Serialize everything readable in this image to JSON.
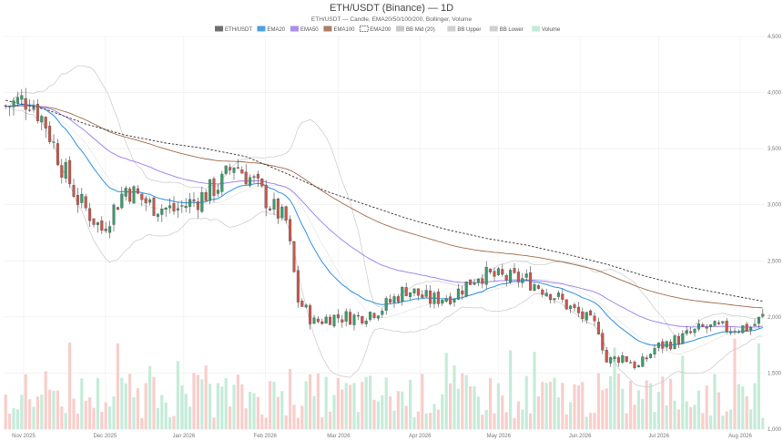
{
  "chart_data": {
    "type": "candlestick",
    "title": "ETH/USDT (Binance) — 1D",
    "subtitle": "ETH/USDT — Candle, EMA20/50/100/200, Bollinger, Volume",
    "legend": [
      {
        "label": "ETH/USDT",
        "color": "#555555",
        "kind": "box"
      },
      {
        "label": "EMA20",
        "color": "#2f8fe0",
        "kind": "box"
      },
      {
        "label": "EMA50",
        "color": "#9b7bea",
        "kind": "box"
      },
      {
        "label": "EMA100",
        "color": "#a0674a",
        "kind": "box"
      },
      {
        "label": "EMA200",
        "color": "#333333",
        "kind": "dashed"
      },
      {
        "label": "BB Mid (20)",
        "color": "#bdbdbd",
        "kind": "box"
      },
      {
        "label": "BB Upper",
        "color": "#c8c8c8",
        "kind": "box"
      },
      {
        "label": "BB Lower",
        "color": "#c8c8c8",
        "kind": "box"
      },
      {
        "label": "Volume",
        "color": "#b9e8d2",
        "kind": "box"
      }
    ],
    "x_ticks": [
      "Nov 2025",
      "Dec 2025",
      "Jan 2026",
      "Feb 2026",
      "Mar 2026",
      "Apr 2026",
      "May 2026",
      "Jun 2026",
      "Jul 2026",
      "Aug 2026"
    ],
    "y_ticks": [
      "1,000",
      "1,500",
      "2,000",
      "2,500",
      "3,000",
      "3,500",
      "4,000",
      "4,500"
    ],
    "ylim": [
      1000,
      4500
    ],
    "price_keyframes": [
      [
        0,
        3880
      ],
      [
        6,
        3950
      ],
      [
        10,
        3720
      ],
      [
        14,
        3350
      ],
      [
        18,
        3050
      ],
      [
        24,
        2780
      ],
      [
        30,
        3150
      ],
      [
        36,
        3000
      ],
      [
        42,
        2950
      ],
      [
        48,
        3050
      ],
      [
        54,
        3200
      ],
      [
        57,
        3370
      ],
      [
        62,
        3200
      ],
      [
        66,
        3000
      ],
      [
        70,
        2850
      ],
      [
        73,
        2150
      ],
      [
        77,
        1950
      ],
      [
        81,
        2000
      ],
      [
        88,
        2000
      ],
      [
        94,
        2080
      ],
      [
        100,
        2250
      ],
      [
        106,
        2150
      ],
      [
        112,
        2200
      ],
      [
        118,
        2380
      ],
      [
        124,
        2350
      ],
      [
        130,
        2330
      ],
      [
        136,
        2220
      ],
      [
        142,
        2050
      ],
      [
        148,
        1900
      ],
      [
        150,
        1600
      ],
      [
        154,
        1650
      ],
      [
        158,
        1550
      ],
      [
        162,
        1720
      ],
      [
        168,
        1800
      ],
      [
        174,
        1900
      ],
      [
        180,
        1900
      ],
      [
        186,
        1910
      ],
      [
        189,
        2000
      ]
    ],
    "ema200_keyframes": [
      [
        0,
        3930
      ],
      [
        10,
        3850
      ],
      [
        20,
        3720
      ],
      [
        30,
        3620
      ],
      [
        40,
        3550
      ],
      [
        50,
        3500
      ],
      [
        60,
        3430
      ],
      [
        70,
        3280
      ],
      [
        80,
        3120
      ],
      [
        90,
        3000
      ],
      [
        100,
        2880
      ],
      [
        110,
        2780
      ],
      [
        120,
        2700
      ],
      [
        130,
        2640
      ],
      [
        140,
        2560
      ],
      [
        150,
        2470
      ],
      [
        160,
        2360
      ],
      [
        170,
        2270
      ],
      [
        180,
        2200
      ],
      [
        189,
        2140
      ]
    ],
    "volume_range": [
      0,
      1
    ],
    "candle_count": 190
  }
}
